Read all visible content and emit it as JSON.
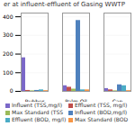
{
  "chart_data": {
    "type": "bar",
    "title": "er at influent-effluent of Gasing WWTP",
    "categories": [
      "Rubber",
      "Palm Oil",
      "Can"
    ],
    "series": [
      {
        "name": "Influent (TSS,mg/l)",
        "color": "#7B68C8",
        "values": [
          180,
          30,
          15
        ]
      },
      {
        "name": "Effluent (TSS, mg/l)",
        "color": "#C0504D",
        "values": [
          5,
          22,
          8
        ]
      },
      {
        "name": "Max Standard (TSS",
        "color": "#9BBB59",
        "values": [
          3,
          12,
          3
        ]
      },
      {
        "name": "Influent (BOD,mg/l)",
        "color": "#4F81BD",
        "values": [
          5,
          380,
          35
        ]
      },
      {
        "name": "Effluent (BOD, mg/l)",
        "color": "#4BACC6",
        "values": [
          8,
          8,
          30
        ]
      },
      {
        "name": "Max Standard (BOD",
        "color": "#F79646",
        "values": [
          4,
          8,
          4
        ]
      }
    ],
    "ylim": [
      0,
      420
    ],
    "yticks": [
      0,
      100,
      200,
      300,
      400
    ],
    "grid": true,
    "legend": "bottom"
  }
}
